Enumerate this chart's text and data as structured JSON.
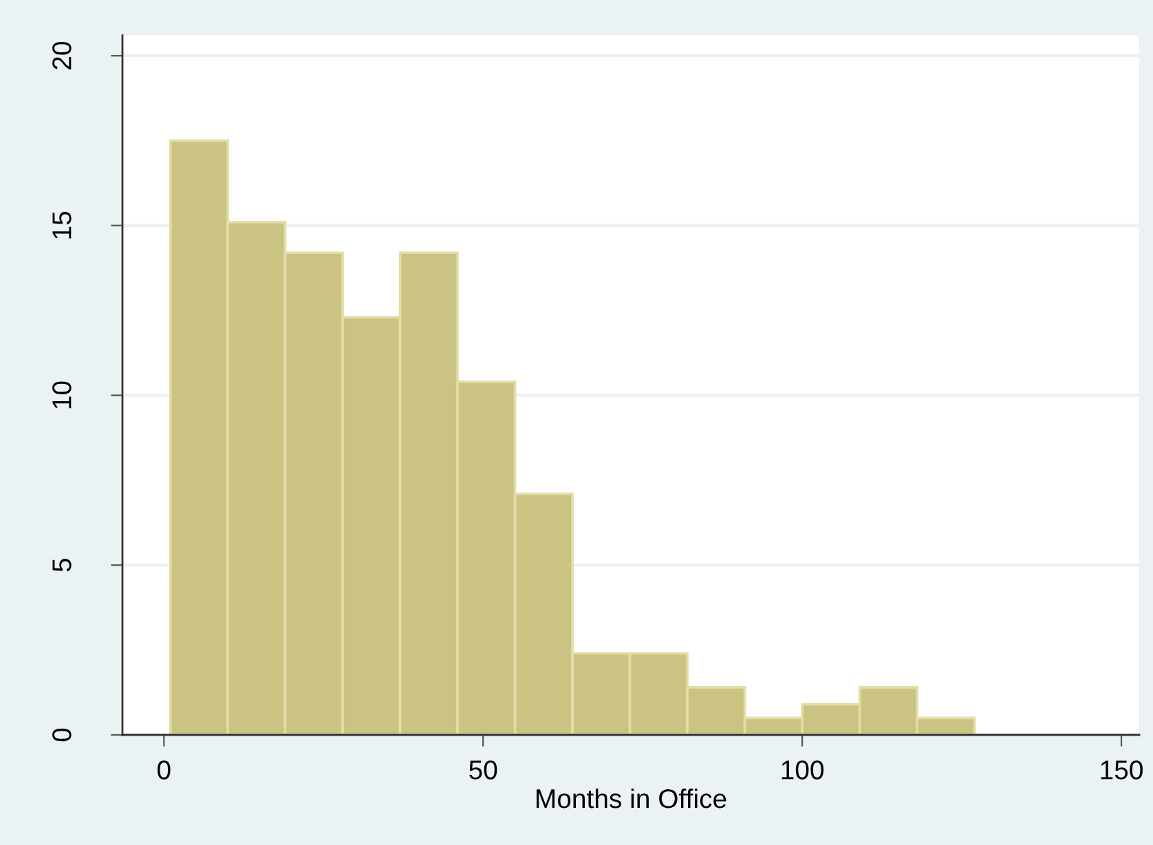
{
  "chart_data": {
    "type": "histogram",
    "xlabel": "Months in Office",
    "bins": [
      1,
      10,
      19,
      28,
      37,
      46,
      55,
      64,
      73,
      82,
      91,
      100,
      109,
      118,
      127
    ],
    "values": [
      17.5,
      15.1,
      14.2,
      12.3,
      14.2,
      10.4,
      7.1,
      2.4,
      2.4,
      1.4,
      0.5,
      0.9,
      1.4,
      0.5
    ],
    "color": "#cbc382",
    "xlim": [
      -6.5,
      152.8
    ],
    "xticks": [
      0,
      50,
      100,
      150
    ],
    "ylim": [
      0,
      20.6
    ],
    "yticks": [
      0,
      5,
      10,
      15,
      20
    ],
    "grid": "y"
  }
}
